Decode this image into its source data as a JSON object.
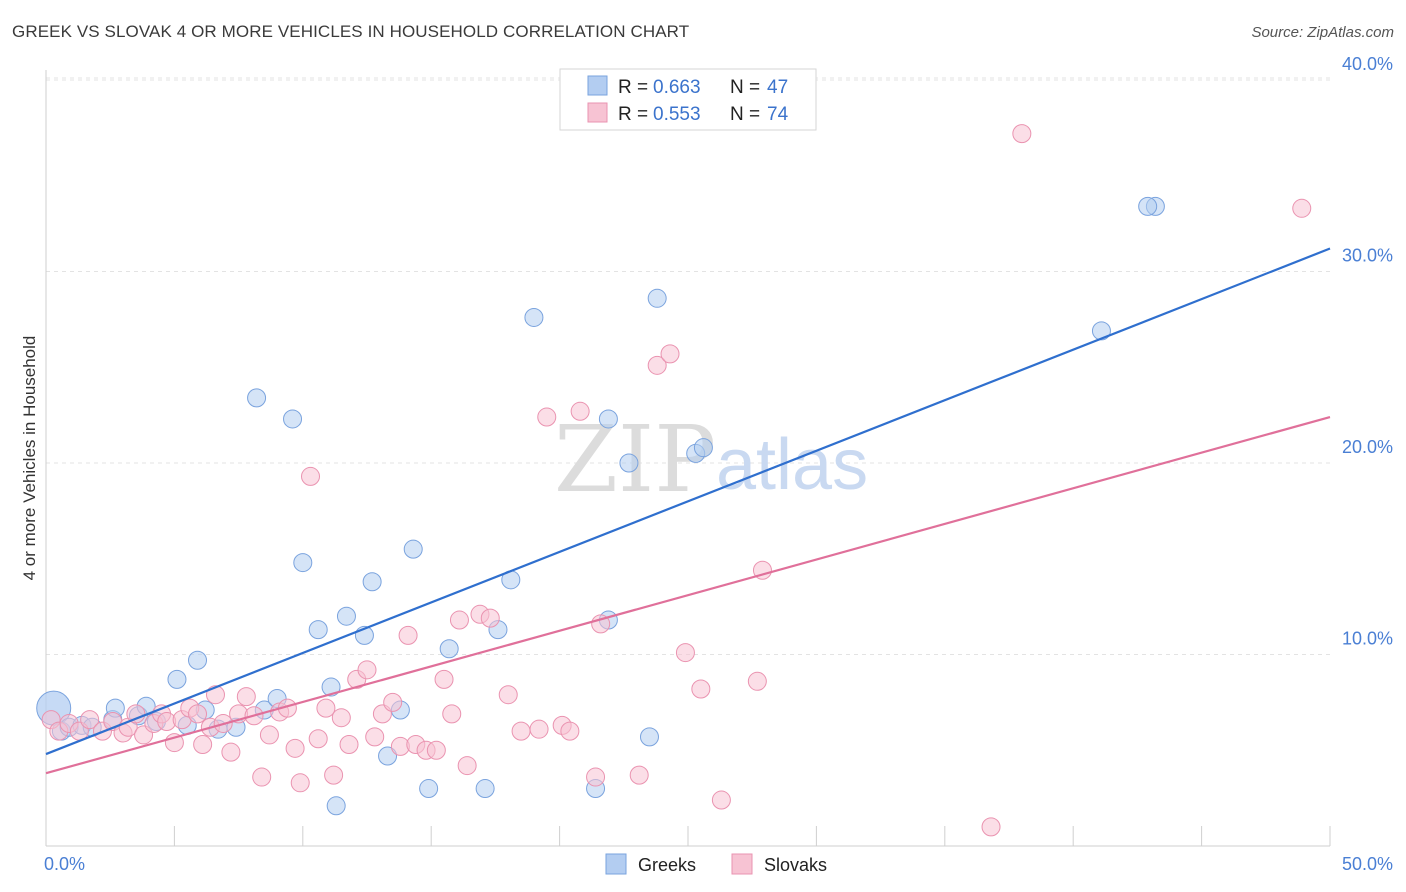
{
  "title": "GREEK VS SLOVAK 4 OR MORE VEHICLES IN HOUSEHOLD CORRELATION CHART",
  "source": "Source: ZipAtlas.com",
  "watermark": {
    "zip": "ZIP",
    "atlas": "atlas"
  },
  "colors": {
    "greeks_fill": "#b3cdf1",
    "greeks_stroke": "#7aa3de",
    "greeks_line": "#2f6fce",
    "slovaks_fill": "#f7c3d3",
    "slovaks_stroke": "#ea93b0",
    "slovaks_line": "#e0709a",
    "grid": "#e3e3e3",
    "axis_tick": "#4a7fd4"
  },
  "legend": {
    "items": [
      {
        "r_label": "R =",
        "r_value": "0.663",
        "n_label": "N =",
        "n_value": "47"
      },
      {
        "r_label": "R =",
        "r_value": "0.553",
        "n_label": "N =",
        "n_value": "74"
      }
    ]
  },
  "bottom_legend": {
    "greeks": "Greeks",
    "slovaks": "Slovaks"
  },
  "chart_data": {
    "type": "scatter",
    "title": "GREEK VS SLOVAK 4 OR MORE VEHICLES IN HOUSEHOLD CORRELATION CHART",
    "xlabel": "",
    "ylabel": "4 or more Vehicles in Household",
    "xlim": [
      0,
      50
    ],
    "ylim": [
      0,
      41
    ],
    "x_tick_labels": {
      "min": "0.0%",
      "max": "50.0%"
    },
    "y_ticks": [
      {
        "value": 10,
        "label": "10.0%"
      },
      {
        "value": 20,
        "label": "20.0%"
      },
      {
        "value": 30,
        "label": "30.0%"
      },
      {
        "value": 40,
        "label": "40.0%"
      }
    ],
    "grid": true,
    "legend_position": "top-center",
    "series": [
      {
        "name": "Greeks",
        "r": 0.663,
        "n": 47,
        "trend": {
          "x0": 0,
          "y0": 4.8,
          "x1": 50,
          "y1": 31.2
        },
        "points": [
          [
            0.3,
            7.2
          ],
          [
            0.6,
            6.0
          ],
          [
            0.9,
            6.2
          ],
          [
            1.4,
            6.3
          ],
          [
            1.8,
            6.2
          ],
          [
            2.6,
            6.6
          ],
          [
            2.7,
            7.2
          ],
          [
            3.6,
            6.8
          ],
          [
            3.9,
            7.3
          ],
          [
            4.3,
            6.5
          ],
          [
            5.1,
            8.7
          ],
          [
            5.5,
            6.3
          ],
          [
            5.9,
            9.7
          ],
          [
            6.2,
            7.1
          ],
          [
            6.7,
            6.1
          ],
          [
            7.4,
            6.2
          ],
          [
            8.2,
            23.4
          ],
          [
            8.5,
            7.1
          ],
          [
            9.0,
            7.7
          ],
          [
            9.6,
            22.3
          ],
          [
            10.0,
            14.8
          ],
          [
            10.6,
            11.3
          ],
          [
            11.1,
            8.3
          ],
          [
            11.3,
            2.1
          ],
          [
            11.7,
            12.0
          ],
          [
            12.4,
            11.0
          ],
          [
            12.7,
            13.8
          ],
          [
            13.3,
            4.7
          ],
          [
            13.8,
            7.1
          ],
          [
            14.3,
            15.5
          ],
          [
            14.9,
            3.0
          ],
          [
            15.7,
            10.3
          ],
          [
            17.1,
            3.0
          ],
          [
            17.6,
            11.3
          ],
          [
            18.1,
            13.9
          ],
          [
            19.0,
            27.6
          ],
          [
            21.4,
            3.0
          ],
          [
            21.9,
            11.8
          ],
          [
            21.9,
            22.3
          ],
          [
            22.7,
            20.0
          ],
          [
            23.5,
            5.7
          ],
          [
            23.8,
            28.6
          ],
          [
            25.3,
            20.5
          ],
          [
            25.6,
            20.8
          ],
          [
            43.2,
            33.4
          ],
          [
            42.9,
            33.4
          ],
          [
            41.1,
            26.9
          ]
        ]
      },
      {
        "name": "Slovaks",
        "r": 0.553,
        "n": 74,
        "trend": {
          "x0": 0,
          "y0": 3.8,
          "x1": 50,
          "y1": 22.4
        },
        "points": [
          [
            0.2,
            6.6
          ],
          [
            0.5,
            6.0
          ],
          [
            0.9,
            6.4
          ],
          [
            1.3,
            6.0
          ],
          [
            1.7,
            6.6
          ],
          [
            2.2,
            6.0
          ],
          [
            2.6,
            6.5
          ],
          [
            3.0,
            5.9
          ],
          [
            3.2,
            6.2
          ],
          [
            3.5,
            6.9
          ],
          [
            3.8,
            5.8
          ],
          [
            4.2,
            6.4
          ],
          [
            4.5,
            6.9
          ],
          [
            4.7,
            6.5
          ],
          [
            5.0,
            5.4
          ],
          [
            5.3,
            6.6
          ],
          [
            5.6,
            7.2
          ],
          [
            5.9,
            6.9
          ],
          [
            6.1,
            5.3
          ],
          [
            6.4,
            6.2
          ],
          [
            6.6,
            7.9
          ],
          [
            6.9,
            6.4
          ],
          [
            7.2,
            4.9
          ],
          [
            7.5,
            6.9
          ],
          [
            7.8,
            7.8
          ],
          [
            8.1,
            6.8
          ],
          [
            8.4,
            3.6
          ],
          [
            8.7,
            5.8
          ],
          [
            9.1,
            7.0
          ],
          [
            9.4,
            7.2
          ],
          [
            9.7,
            5.1
          ],
          [
            9.9,
            3.3
          ],
          [
            10.3,
            19.3
          ],
          [
            10.6,
            5.6
          ],
          [
            10.9,
            7.2
          ],
          [
            11.2,
            3.7
          ],
          [
            11.5,
            6.7
          ],
          [
            11.8,
            5.3
          ],
          [
            12.1,
            8.7
          ],
          [
            12.5,
            9.2
          ],
          [
            12.8,
            5.7
          ],
          [
            13.1,
            6.9
          ],
          [
            13.5,
            7.5
          ],
          [
            13.8,
            5.2
          ],
          [
            14.1,
            11.0
          ],
          [
            14.4,
            5.3
          ],
          [
            14.8,
            5.0
          ],
          [
            15.2,
            5.0
          ],
          [
            15.5,
            8.7
          ],
          [
            15.8,
            6.9
          ],
          [
            16.1,
            11.8
          ],
          [
            16.4,
            4.2
          ],
          [
            16.9,
            12.1
          ],
          [
            17.3,
            11.9
          ],
          [
            18.0,
            7.9
          ],
          [
            18.5,
            6.0
          ],
          [
            19.2,
            6.1
          ],
          [
            19.5,
            22.4
          ],
          [
            20.1,
            6.3
          ],
          [
            20.4,
            6.0
          ],
          [
            20.8,
            22.7
          ],
          [
            21.4,
            3.6
          ],
          [
            21.6,
            11.6
          ],
          [
            23.1,
            3.7
          ],
          [
            23.8,
            25.1
          ],
          [
            24.3,
            25.7
          ],
          [
            24.9,
            10.1
          ],
          [
            25.5,
            8.2
          ],
          [
            26.3,
            2.4
          ],
          [
            27.7,
            8.6
          ],
          [
            27.9,
            14.4
          ],
          [
            36.8,
            1.0
          ],
          [
            38.0,
            37.2
          ],
          [
            48.9,
            33.3
          ]
        ]
      }
    ]
  }
}
